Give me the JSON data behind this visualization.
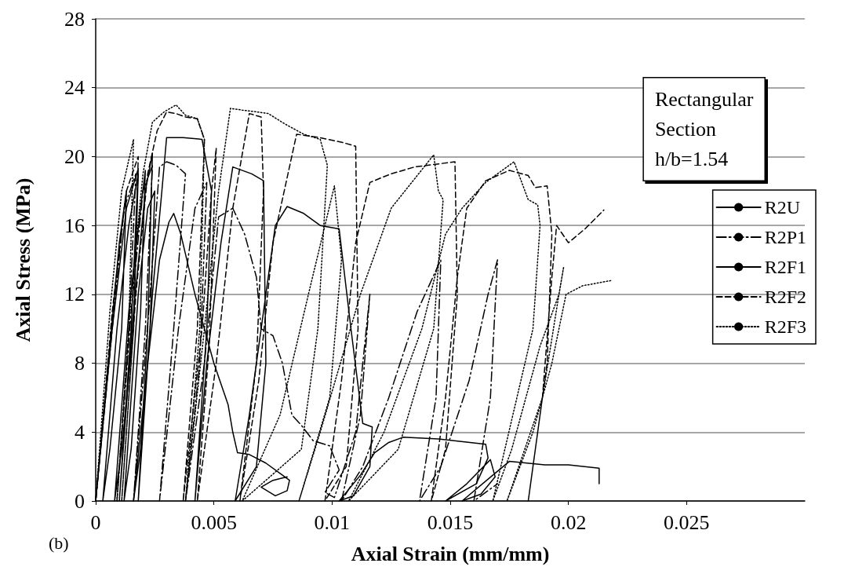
{
  "chart_data": {
    "type": "line",
    "xlabel": "Axial Strain (mm/mm)",
    "ylabel": "Axial Stress (MPa)",
    "annotations": [
      "Rectangular\nSection\nh/b=1.54",
      "(b)"
    ],
    "xlim": [
      0,
      0.03
    ],
    "xticks": [
      0,
      0.005,
      0.01,
      0.015,
      0.02,
      0.025
    ],
    "ylim": [
      0,
      28
    ],
    "yticks": [
      0,
      4,
      8,
      12,
      16,
      20,
      24,
      28
    ],
    "grid": "y",
    "legend": "right",
    "marker": "none",
    "series": [
      {
        "name": "R2U",
        "color": "#000000",
        "line_style": "solid",
        "x": [
          0,
          0.0006,
          0.001,
          0.0013,
          0.0011,
          0.0006,
          0.0003,
          0.0009,
          0.0014,
          0.0018,
          0.0016,
          0.0011,
          0.0008,
          0.0014,
          0.0019,
          0.0021,
          0.0019,
          0.0015,
          0.0012,
          0.0018,
          0.0022,
          0.0025,
          0.0023,
          0.0019,
          0.0016,
          0.0022,
          0.0027,
          0.0031,
          0.0033,
          0.0036,
          0.0042,
          0.005,
          0.0056,
          0.0058,
          0.006,
          0.0065,
          0.0072,
          0.0078,
          0.0082,
          0.0081,
          0.0076,
          0.007,
          0.0075,
          0.0081
        ],
        "values": [
          0,
          9,
          15,
          18,
          10,
          3,
          0,
          10,
          16,
          19,
          10,
          3,
          0,
          11,
          17,
          19.2,
          11,
          3,
          0,
          12,
          17,
          18,
          10,
          3,
          0,
          8,
          14,
          16.2,
          16.7,
          15.5,
          12,
          8,
          5.6,
          4,
          2.8,
          2.7,
          2.2,
          1.6,
          1.2,
          0.6,
          0.3,
          0.8,
          1.2,
          1.4
        ]
      },
      {
        "name": "R2P1",
        "color": "#000000",
        "line_style": "dashdot",
        "x": [
          0,
          0.0007,
          0.0012,
          0.0017,
          0.0014,
          0.0009,
          0.0015,
          0.002,
          0.0024,
          0.0021,
          0.0016,
          0.0023,
          0.0027,
          0.003,
          0.0034,
          0.0038,
          0.0033,
          0.0027,
          0.0035,
          0.0042,
          0.0047,
          0.0044,
          0.0038,
          0.0046,
          0.0052,
          0.0058,
          0.0063,
          0.0068,
          0.007,
          0.0075,
          0.0079,
          0.0083,
          0.0087,
          0.0092,
          0.0099,
          0.0103,
          0.0097,
          0.0101,
          0.011,
          0.0116,
          0.0112,
          0.0104,
          0.0113,
          0.0124,
          0.0136,
          0.0146,
          0.0144,
          0.0137,
          0.0146,
          0.0158,
          0.0166,
          0.017,
          0.0167,
          0.016,
          0.017
        ],
        "values": [
          0,
          10,
          17,
          19,
          10,
          0,
          11,
          18,
          19.5,
          10,
          0,
          12,
          19.4,
          19.7,
          19.5,
          19,
          10,
          0,
          10,
          17,
          18.5,
          8,
          0,
          8,
          16.5,
          17,
          15.5,
          13,
          10,
          9.6,
          8,
          5,
          4.4,
          3.5,
          3.2,
          1.8,
          0.5,
          0.2,
          4,
          12,
          5,
          0,
          2,
          6,
          11,
          14,
          6,
          0,
          2,
          7,
          12,
          14,
          6,
          0,
          1
        ]
      },
      {
        "name": "R2F1",
        "color": "#000000",
        "line_style": "solid",
        "x": [
          0,
          0.0007,
          0.0013,
          0.0018,
          0.0015,
          0.001,
          0.0016,
          0.0021,
          0.0024,
          0.0022,
          0.0018,
          0.0024,
          0.0028,
          0.003,
          0.0037,
          0.0045,
          0.0049,
          0.0047,
          0.0042,
          0.0047,
          0.0053,
          0.0058,
          0.0066,
          0.0071,
          0.0072,
          0.0068,
          0.0059,
          0.0065,
          0.0072,
          0.0076,
          0.0081,
          0.0088,
          0.0095,
          0.0103,
          0.0108,
          0.0113,
          0.0117,
          0.0116,
          0.0109,
          0.0103,
          0.0112,
          0.0118,
          0.0124,
          0.013,
          0.0145,
          0.0165,
          0.0166,
          0.0161,
          0.0148,
          0.0157,
          0.0167,
          0.0169,
          0.0163,
          0.0155,
          0.0168,
          0.0175,
          0.019,
          0.02,
          0.0213,
          0.0213
        ],
        "values": [
          0,
          10,
          17,
          19.3,
          10,
          0,
          11,
          18,
          20.2,
          10,
          0,
          12,
          18,
          21.1,
          21.1,
          21,
          18,
          10,
          0,
          8,
          15,
          19.4,
          19,
          18.6,
          8,
          2,
          0,
          5,
          12,
          16,
          17.1,
          16.7,
          16,
          15.8,
          10,
          4.5,
          4.3,
          2,
          0.3,
          0,
          1.5,
          2.8,
          3.4,
          3.7,
          3.6,
          3.3,
          2.5,
          1,
          0,
          1,
          2.4,
          1.4,
          0.4,
          0,
          1.5,
          2.3,
          2.1,
          2.1,
          1.9,
          1
        ]
      },
      {
        "name": "R2F2",
        "color": "#000000",
        "line_style": "dashed",
        "x": [
          0,
          0.0007,
          0.0013,
          0.0018,
          0.0016,
          0.0011,
          0.0017,
          0.0022,
          0.0026,
          0.003,
          0.0034,
          0.0038,
          0.0043,
          0.0046,
          0.0043,
          0.0037,
          0.0045,
          0.0049,
          0.0051,
          0.0048,
          0.0043,
          0.0051,
          0.0058,
          0.0065,
          0.007,
          0.0071,
          0.0068,
          0.0061,
          0.0069,
          0.0075,
          0.0085,
          0.0095,
          0.0105,
          0.011,
          0.0111,
          0.0106,
          0.0097,
          0.0104,
          0.011,
          0.0116,
          0.0125,
          0.0135,
          0.0152,
          0.0153,
          0.0148,
          0.0142,
          0.0148,
          0.0153,
          0.0157,
          0.0165,
          0.0175,
          0.0183,
          0.0186,
          0.0191,
          0.0193,
          0.0191,
          0.0183,
          0.0189,
          0.0193,
          0.0195,
          0.02,
          0.0207,
          0.0215
        ],
        "values": [
          0,
          11,
          18,
          20,
          10,
          0,
          12,
          19,
          21.5,
          22.6,
          22.5,
          22.3,
          22.2,
          21,
          10,
          0,
          10,
          18,
          20.5,
          9,
          0,
          8,
          17,
          22.5,
          22.3,
          18,
          8,
          0,
          7,
          15,
          21.3,
          21.1,
          20.8,
          20.6,
          10,
          2,
          0,
          7,
          15,
          18.5,
          19,
          19.4,
          19.7,
          12,
          3,
          0,
          6,
          13,
          17,
          18.6,
          19.2,
          18.9,
          18.2,
          18.3,
          15.5,
          8,
          0,
          6,
          13,
          16,
          15,
          15.8,
          16.9
        ]
      },
      {
        "name": "R2F3",
        "color": "#000000",
        "line_style": "dotted",
        "x": [
          0,
          0.0006,
          0.0011,
          0.0016,
          0.0014,
          0.0009,
          0.0015,
          0.002,
          0.0024,
          0.0029,
          0.0034,
          0.0038,
          0.0043,
          0.0046,
          0.0044,
          0.0038,
          0.0046,
          0.0052,
          0.0057,
          0.0062,
          0.0068,
          0.0073,
          0.008,
          0.0088,
          0.0095,
          0.0098,
          0.0094,
          0.0087,
          0.0062,
          0.0078,
          0.009,
          0.0101,
          0.0104,
          0.0099,
          0.0086,
          0.0095,
          0.0112,
          0.0125,
          0.0143,
          0.0145,
          0.0147,
          0.0143,
          0.0128,
          0.0107,
          0.0122,
          0.0138,
          0.0148,
          0.0155,
          0.0165,
          0.0177,
          0.0183,
          0.0187,
          0.0188,
          0.0185,
          0.0168,
          0.0176,
          0.0188,
          0.0196,
          0.0198,
          0.0196,
          0.0189,
          0.0174,
          0.0185,
          0.0193,
          0.0199,
          0.0206,
          0.0218
        ],
        "values": [
          0,
          11,
          18,
          21,
          10,
          0,
          12,
          19,
          22,
          22.6,
          23,
          22.4,
          22.2,
          21,
          10,
          0,
          10,
          18,
          22.8,
          22.7,
          22.6,
          22.5,
          21.9,
          21.3,
          21,
          19.5,
          10,
          3,
          0,
          5,
          12,
          18.3,
          14,
          6,
          0,
          4,
          12,
          17,
          20.1,
          18,
          17.5,
          10,
          3,
          0,
          4,
          10,
          15.5,
          17,
          18.5,
          19.7,
          17.5,
          17.2,
          16,
          10,
          0,
          3,
          9,
          12,
          13.6,
          12,
          6,
          0,
          4,
          8,
          12,
          12.5,
          12.8
        ]
      }
    ]
  }
}
